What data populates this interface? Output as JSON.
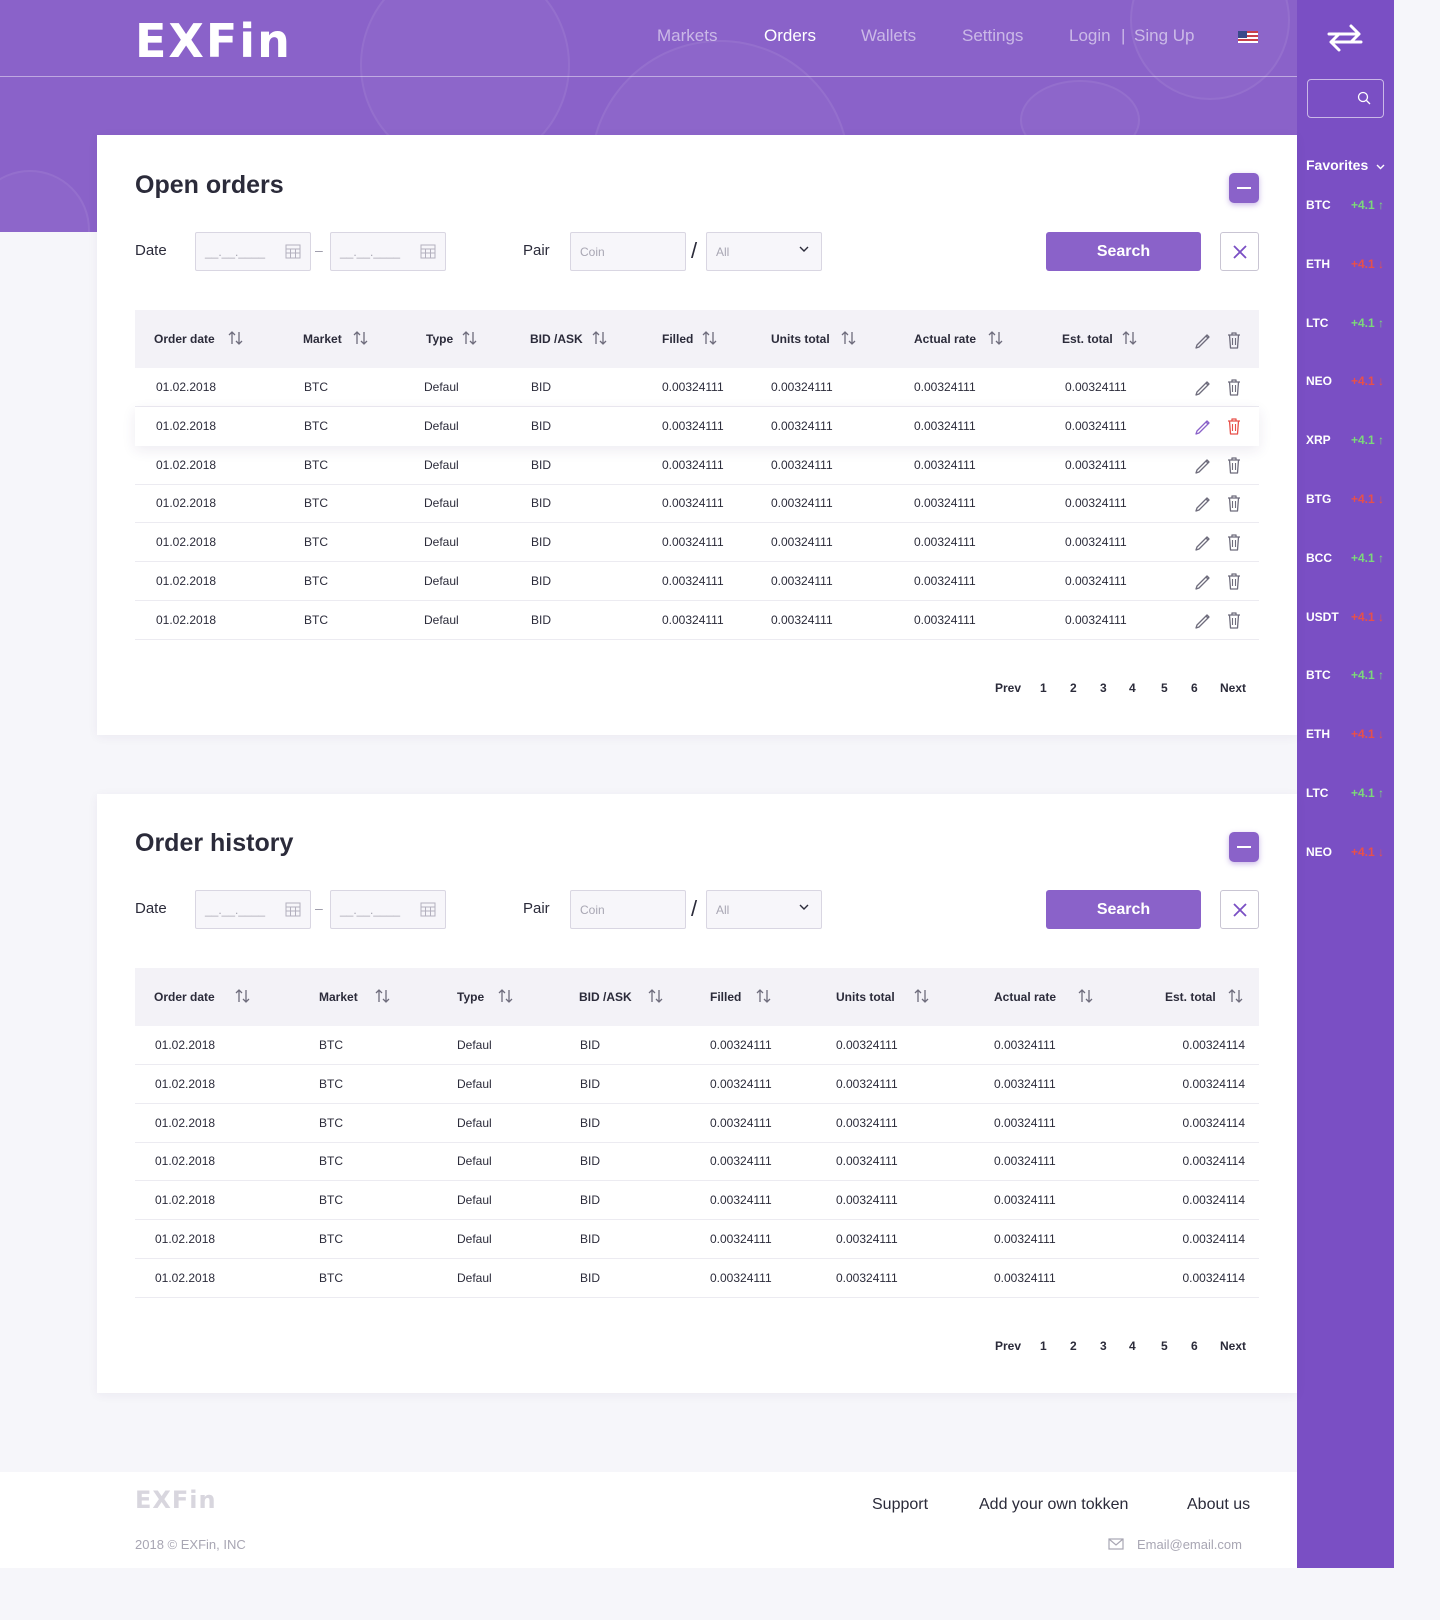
{
  "brand": {
    "logo": "EXFin"
  },
  "nav": {
    "markets": "Markets",
    "orders": "Orders",
    "wallets": "Wallets",
    "settings": "Settings",
    "login": "Login",
    "separator": "|",
    "signup": "Sing Up"
  },
  "sidebar": {
    "favorites": "Favorites",
    "items": [
      {
        "coin": "BTC",
        "change": "+4.1",
        "dir": "up"
      },
      {
        "coin": "ETH",
        "change": "+4.1",
        "dir": "down"
      },
      {
        "coin": "LTC",
        "change": "+4.1",
        "dir": "up"
      },
      {
        "coin": "NEO",
        "change": "+4.1",
        "dir": "down"
      },
      {
        "coin": "XRP",
        "change": "+4.1",
        "dir": "up"
      },
      {
        "coin": "BTG",
        "change": "+4.1",
        "dir": "down"
      },
      {
        "coin": "BCC",
        "change": "+4.1",
        "dir": "up"
      },
      {
        "coin": "USDT",
        "change": "+4.1",
        "dir": "down"
      },
      {
        "coin": "BTC",
        "change": "+4.1",
        "dir": "up"
      },
      {
        "coin": "ETH",
        "change": "+4.1",
        "dir": "down"
      },
      {
        "coin": "LTC",
        "change": "+4.1",
        "dir": "up"
      },
      {
        "coin": "NEO",
        "change": "+4.1",
        "dir": "down"
      }
    ]
  },
  "filters": {
    "date_label": "Date",
    "date_placeholder": "__.__.____",
    "dash": "–",
    "pair_label": "Pair",
    "coin_placeholder": "Coin",
    "slash": "/",
    "all_value": "All",
    "search_label": "Search"
  },
  "open_orders": {
    "title": "Open orders",
    "columns": [
      "Order date",
      "Market",
      "Type",
      "BID /ASK",
      "Filled",
      "Units total",
      "Actual rate",
      "Est. total"
    ],
    "rows": [
      [
        "01.02.2018",
        "BTC",
        "Defaul",
        "BID",
        "0.00324111",
        "0.00324111",
        "0.00324111",
        "0.00324111"
      ],
      [
        "01.02.2018",
        "BTC",
        "Defaul",
        "BID",
        "0.00324111",
        "0.00324111",
        "0.00324111",
        "0.00324111"
      ],
      [
        "01.02.2018",
        "BTC",
        "Defaul",
        "BID",
        "0.00324111",
        "0.00324111",
        "0.00324111",
        "0.00324111"
      ],
      [
        "01.02.2018",
        "BTC",
        "Defaul",
        "BID",
        "0.00324111",
        "0.00324111",
        "0.00324111",
        "0.00324111"
      ],
      [
        "01.02.2018",
        "BTC",
        "Defaul",
        "BID",
        "0.00324111",
        "0.00324111",
        "0.00324111",
        "0.00324111"
      ],
      [
        "01.02.2018",
        "BTC",
        "Defaul",
        "BID",
        "0.00324111",
        "0.00324111",
        "0.00324111",
        "0.00324111"
      ],
      [
        "01.02.2018",
        "BTC",
        "Defaul",
        "BID",
        "0.00324111",
        "0.00324111",
        "0.00324111",
        "0.00324111"
      ]
    ],
    "highlighted_row": 2
  },
  "order_history": {
    "title": "Order history",
    "columns": [
      "Order date",
      "Market",
      "Type",
      "BID /ASK",
      "Filled",
      "Units total",
      "Actual rate",
      "Est. total"
    ],
    "rows": [
      [
        "01.02.2018",
        "BTC",
        "Defaul",
        "BID",
        "0.00324111",
        "0.00324111",
        "0.00324111",
        "0.00324114"
      ],
      [
        "01.02.2018",
        "BTC",
        "Defaul",
        "BID",
        "0.00324111",
        "0.00324111",
        "0.00324111",
        "0.00324114"
      ],
      [
        "01.02.2018",
        "BTC",
        "Defaul",
        "BID",
        "0.00324111",
        "0.00324111",
        "0.00324111",
        "0.00324114"
      ],
      [
        "01.02.2018",
        "BTC",
        "Defaul",
        "BID",
        "0.00324111",
        "0.00324111",
        "0.00324111",
        "0.00324114"
      ],
      [
        "01.02.2018",
        "BTC",
        "Defaul",
        "BID",
        "0.00324111",
        "0.00324111",
        "0.00324111",
        "0.00324114"
      ],
      [
        "01.02.2018",
        "BTC",
        "Defaul",
        "BID",
        "0.00324111",
        "0.00324111",
        "0.00324111",
        "0.00324114"
      ],
      [
        "01.02.2018",
        "BTC",
        "Defaul",
        "BID",
        "0.00324111",
        "0.00324111",
        "0.00324111",
        "0.00324114"
      ]
    ]
  },
  "pagination": {
    "prev": "Prev",
    "pages": [
      "1",
      "2",
      "3",
      "4",
      "5",
      "6"
    ],
    "next": "Next"
  },
  "footer": {
    "logo": "EXFin",
    "links": [
      "Support",
      "Add your own tokken",
      "About us"
    ],
    "copyright": "2018 © EXFin, INC",
    "email": "Email@email.com"
  },
  "colors": {
    "brand": "#8a62c9",
    "sidebar": "#7a4fc4",
    "up": "#7cd87a",
    "down": "#e8504a",
    "action_edit_active": "#8a62c9",
    "action_delete_active": "#e8504a"
  }
}
